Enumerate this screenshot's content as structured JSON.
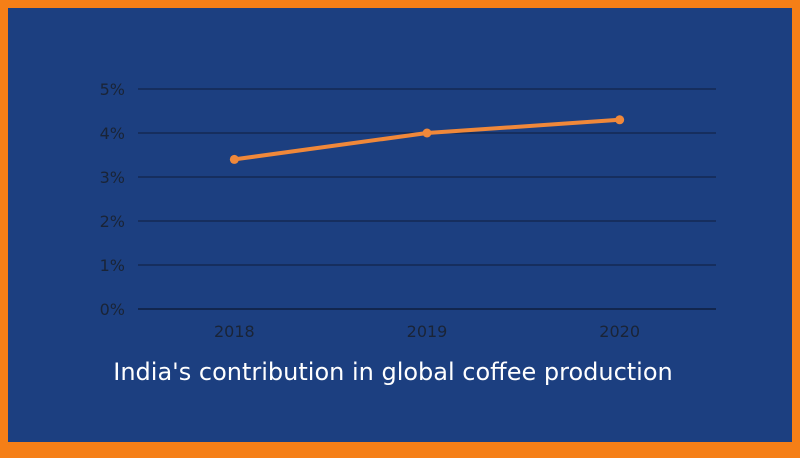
{
  "chart_data": {
    "type": "line",
    "title": "India's contribution in global coffee production",
    "categories": [
      "2018",
      "2019",
      "2020"
    ],
    "series": [
      {
        "values": [
          3.4,
          4.0,
          4.3
        ]
      }
    ],
    "ylim": [
      0,
      5
    ],
    "yticks": [
      "0%",
      "1%",
      "2%",
      "3%",
      "4%",
      "5%"
    ],
    "grid": true,
    "colors": {
      "background": "#1c3f80",
      "border": "#f57f17",
      "line": "#f0883a",
      "grid": "#0f1e3d",
      "ticks": "#1a2436"
    }
  }
}
